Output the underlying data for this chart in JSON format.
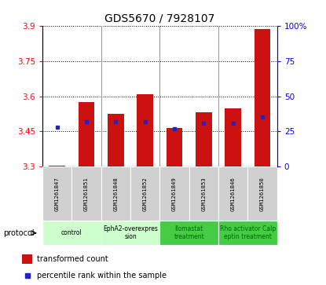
{
  "title": "GDS5670 / 7928107",
  "samples": [
    "GSM1261847",
    "GSM1261851",
    "GSM1261848",
    "GSM1261852",
    "GSM1261849",
    "GSM1261853",
    "GSM1261846",
    "GSM1261850"
  ],
  "transformed_counts": [
    3.305,
    3.575,
    3.525,
    3.607,
    3.464,
    3.53,
    3.547,
    3.885
  ],
  "percentile_ranks": [
    28,
    32,
    32,
    32,
    27,
    31,
    31,
    35
  ],
  "ylim_left": [
    3.3,
    3.9
  ],
  "ylim_right": [
    0,
    100
  ],
  "yticks_left": [
    3.3,
    3.45,
    3.6,
    3.75,
    3.9
  ],
  "yticks_right": [
    0,
    25,
    50,
    75,
    100
  ],
  "ytick_labels_left": [
    "3.3",
    "3.45",
    "3.6",
    "3.75",
    "3.9"
  ],
  "ytick_labels_right": [
    "0",
    "25",
    "50",
    "75",
    "100%"
  ],
  "bar_color": "#cc1111",
  "dot_color": "#2222cc",
  "base_value": 3.3,
  "protocols": [
    {
      "label": "control",
      "span": [
        0,
        2
      ],
      "color": "#ccffcc",
      "text_color": "#000000"
    },
    {
      "label": "EphA2-overexpres\nsion",
      "span": [
        2,
        4
      ],
      "color": "#ccffcc",
      "text_color": "#000000"
    },
    {
      "label": "Ilomastat\ntreatment",
      "span": [
        4,
        6
      ],
      "color": "#44cc44",
      "text_color": "#006600"
    },
    {
      "label": "Rho activator Calp\neptin treatment",
      "span": [
        6,
        8
      ],
      "color": "#44cc44",
      "text_color": "#006600"
    }
  ],
  "legend_bar_label": "transformed count",
  "legend_dot_label": "percentile rank within the sample",
  "protocol_label": "protocol"
}
